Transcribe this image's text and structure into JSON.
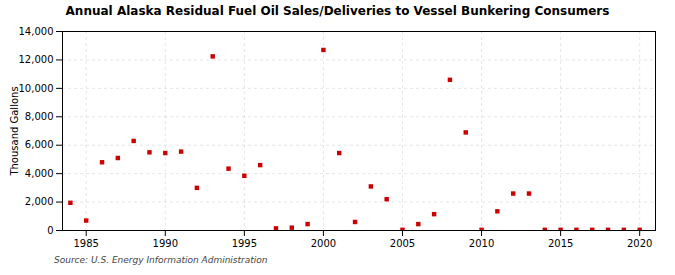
{
  "chart_data": {
    "type": "scatter",
    "title": "Annual Alaska Residual Fuel Oil Sales/Deliveries to Vessel Bunkering Consumers",
    "ylabel": "Thousand Gallons",
    "annotation": "Source: U.S. Energy Information Administration",
    "color": "#cc0000",
    "marker": "square",
    "grid": true,
    "xlim": [
      1983.5,
      2021
    ],
    "ylim": [
      0,
      14000
    ],
    "xticks": [
      1985,
      1990,
      1995,
      2000,
      2005,
      2010,
      2015,
      2020
    ],
    "yticks": [
      0,
      {
        "value": 2000,
        "label": "2,000"
      },
      {
        "value": 4000,
        "label": "4,000"
      },
      {
        "value": 6000,
        "label": "6,000"
      },
      {
        "value": 8000,
        "label": "8,000"
      },
      {
        "value": 10000,
        "label": "10,000"
      },
      {
        "value": 12000,
        "label": "12,000"
      },
      {
        "value": 14000,
        "label": "14,000"
      }
    ],
    "x": [
      1984,
      1985,
      1986,
      1987,
      1988,
      1989,
      1990,
      1991,
      1992,
      1993,
      1994,
      1995,
      1996,
      1997,
      1998,
      1999,
      2000,
      2001,
      2002,
      2003,
      2004,
      2005,
      2006,
      2007,
      2008,
      2009,
      2010,
      2011,
      2012,
      2013,
      2014,
      2015,
      2016,
      2017,
      2018,
      2019,
      2020
    ],
    "values": [
      1950,
      700,
      4800,
      5100,
      6300,
      5500,
      5450,
      5550,
      3000,
      12250,
      4350,
      3850,
      4600,
      150,
      200,
      450,
      12700,
      5450,
      600,
      3100,
      2200,
      50,
      450,
      1150,
      10600,
      6900,
      50,
      1350,
      2600,
      2600,
      50,
      50,
      50,
      50,
      50,
      50,
      50
    ]
  }
}
